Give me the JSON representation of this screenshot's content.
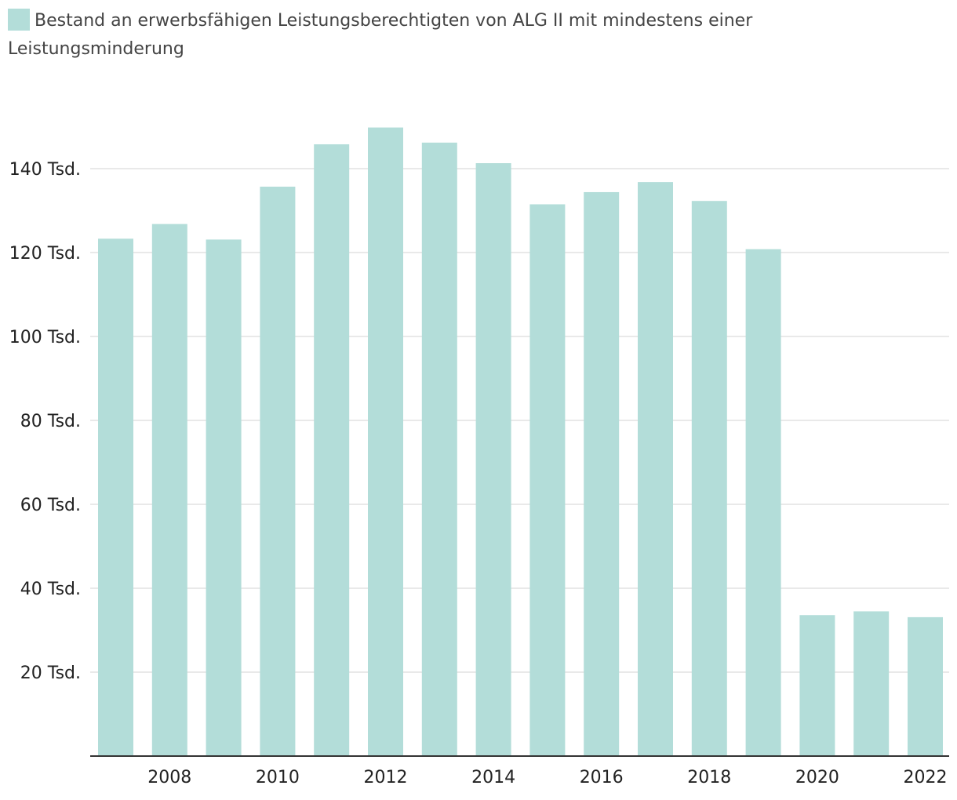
{
  "chart_data": {
    "type": "bar",
    "title": "",
    "xlabel": "",
    "ylabel": "",
    "legend": {
      "label": "Bestand an erwerbsfähigen Leistungsberechtigten von ALG II mit mindestens einer Leistungsminderung",
      "placement": "top-left"
    },
    "categories": [
      "2007",
      "2008",
      "2009",
      "2010",
      "2011",
      "2012",
      "2013",
      "2014",
      "2015",
      "2016",
      "2017",
      "2018",
      "2019",
      "2020",
      "2021",
      "2022"
    ],
    "x_tick_labels": [
      "2008",
      "2010",
      "2012",
      "2014",
      "2016",
      "2018",
      "2020",
      "2022"
    ],
    "series": [
      {
        "name": "Bestand an erwerbsfähigen Leistungsberechtigten von ALG II mit mindestens einer Leistungsminderung",
        "values": [
          123300,
          126800,
          123100,
          135700,
          145800,
          149800,
          146200,
          141300,
          131500,
          134400,
          136800,
          132300,
          120800,
          33600,
          34500,
          33100
        ]
      }
    ],
    "y_ticks": [
      {
        "value": 20000,
        "label": "20 Tsd."
      },
      {
        "value": 40000,
        "label": "40 Tsd."
      },
      {
        "value": 60000,
        "label": "60 Tsd."
      },
      {
        "value": 80000,
        "label": "80 Tsd."
      },
      {
        "value": 100000,
        "label": "100 Tsd."
      },
      {
        "value": 120000,
        "label": "120 Tsd."
      },
      {
        "value": 140000,
        "label": "140 Tsd."
      }
    ],
    "ylim": [
      0,
      150000
    ],
    "grid": true,
    "colors": {
      "bar": "#b3ddd9",
      "grid": "#e2e2e2",
      "axis": "#333333"
    }
  }
}
